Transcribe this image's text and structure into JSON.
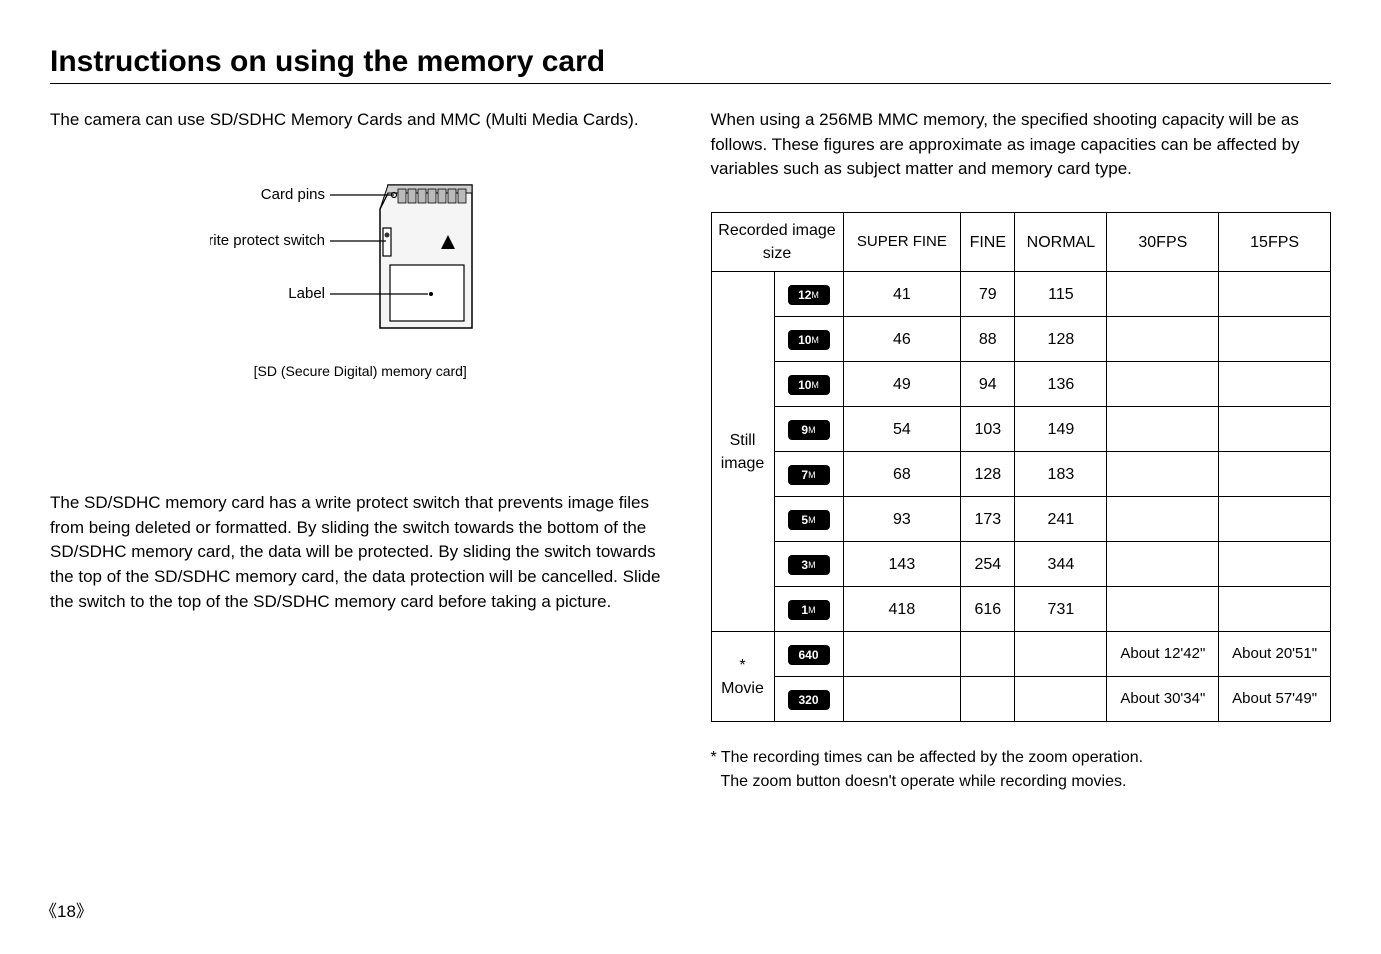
{
  "title": "Instructions on using the memory card",
  "left": {
    "intro": "The camera can use SD/SDHC Memory Cards and MMC (Multi Media Cards).",
    "diagram": {
      "label_pins": "Card pins",
      "label_switch": "Write protect switch",
      "label_label": "Label",
      "caption": "[SD (Secure Digital) memory card]"
    },
    "body": "The SD/SDHC memory card has a write protect switch that prevents image files from being deleted or formatted. By sliding the switch towards the bottom of the SD/SDHC memory card, the data will be protected. By sliding the switch towards the top of the SD/SDHC memory card, the data protection will be cancelled. Slide the switch to the top of the SD/SDHC memory card before taking a picture."
  },
  "right": {
    "intro": "When using a 256MB MMC memory, the specified shooting capacity will be as follows. These figures are approximate as image capacities can be affected by variables such as subject matter and memory card type.",
    "table": {
      "headers": {
        "recorded": "Recorded image size",
        "superfine": "SUPER FINE",
        "fine": "FINE",
        "normal": "NORMAL",
        "fps30": "30FPS",
        "fps15": "15FPS"
      },
      "still_label": "Still image",
      "movie_label": "* Movie",
      "still_rows": [
        {
          "badge": "12",
          "unit": "M",
          "sf": "41",
          "f": "79",
          "n": "115"
        },
        {
          "badge": "10",
          "unit": "M",
          "sf": "46",
          "f": "88",
          "n": "128",
          "wide": true
        },
        {
          "badge": "10",
          "unit": "M",
          "sf": "49",
          "f": "94",
          "n": "136"
        },
        {
          "badge": "9",
          "unit": "M",
          "sf": "54",
          "f": "103",
          "n": "149"
        },
        {
          "badge": "7",
          "unit": "M",
          "sf": "68",
          "f": "128",
          "n": "183"
        },
        {
          "badge": "5",
          "unit": "M",
          "sf": "93",
          "f": "173",
          "n": "241"
        },
        {
          "badge": "3",
          "unit": "M",
          "sf": "143",
          "f": "254",
          "n": "344"
        },
        {
          "badge": "1",
          "unit": "M",
          "sf": "418",
          "f": "616",
          "n": "731"
        }
      ],
      "movie_rows": [
        {
          "badge": "640",
          "fps30": "About 12'42\"",
          "fps15": "About 20'51\""
        },
        {
          "badge": "320",
          "fps30": "About 30'34\"",
          "fps15": "About 57'49\""
        }
      ]
    },
    "footnote_line1": "* The recording times can be affected by the zoom operation.",
    "footnote_line2": "The zoom button doesn't operate while recording movies."
  },
  "page_number": "18"
}
